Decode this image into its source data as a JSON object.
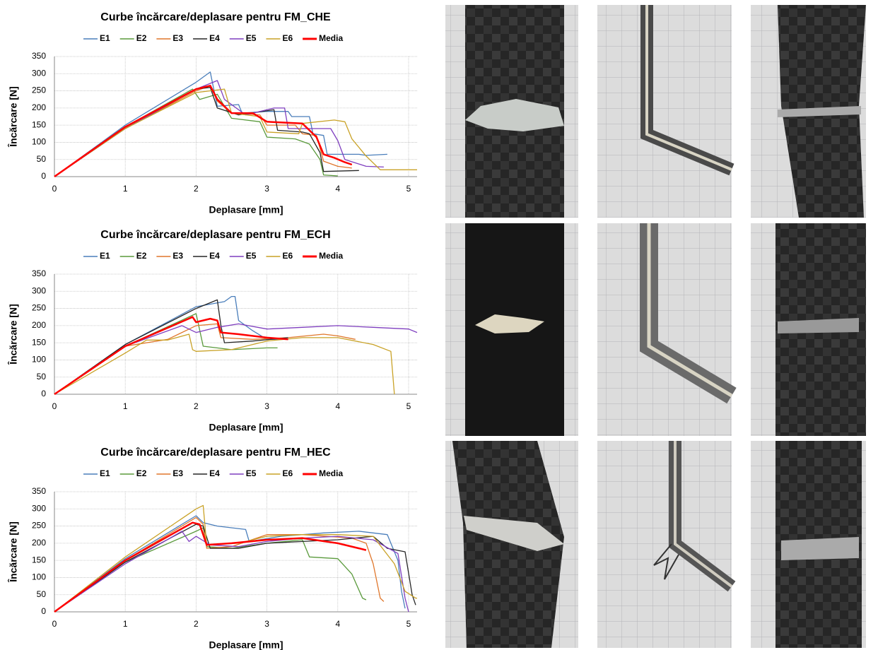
{
  "chart_data": [
    {
      "type": "line",
      "title": "Curbe încărcare/deplasare pentru FM_CHE",
      "x_label": "Deplasare  [mm]",
      "y_label": "Încărcare [N]",
      "xlim": [
        0,
        5.12
      ],
      "xticks": [
        0,
        1,
        2,
        3,
        4,
        5
      ],
      "ylim": [
        0,
        350
      ],
      "yticks": [
        0,
        50,
        100,
        150,
        200,
        250,
        300,
        350
      ],
      "grid": true,
      "legend": "top",
      "series": [
        {
          "name": "E1",
          "color": "#4a7ebb",
          "x": [
            0,
            1,
            2,
            2.2,
            2.3,
            2.6,
            2.65,
            3.0,
            3.3,
            3.35,
            3.6,
            3.65,
            3.8,
            3.85,
            4.3,
            4.4,
            4.7
          ],
          "values": [
            0,
            150,
            275,
            305,
            205,
            210,
            185,
            190,
            190,
            175,
            175,
            125,
            120,
            65,
            65,
            62,
            65
          ]
        },
        {
          "name": "E2",
          "color": "#5a9a3c",
          "x": [
            0,
            1,
            1.95,
            2.05,
            2.3,
            2.5,
            2.9,
            3.0,
            3.4,
            3.6,
            3.75,
            3.8,
            4.0
          ],
          "values": [
            0,
            145,
            255,
            225,
            240,
            170,
            160,
            115,
            110,
            95,
            50,
            5,
            2
          ]
        },
        {
          "name": "E3",
          "color": "#e0772c",
          "x": [
            0,
            1,
            2,
            2.2,
            2.3,
            2.5,
            2.9,
            3.0,
            3.4,
            3.5,
            3.7,
            3.8,
            4.0,
            4.2
          ],
          "values": [
            0,
            140,
            250,
            265,
            220,
            185,
            180,
            150,
            150,
            125,
            120,
            45,
            30,
            25
          ]
        },
        {
          "name": "E4",
          "color": "#262626",
          "x": [
            0,
            1,
            2,
            2.2,
            2.3,
            2.6,
            3.1,
            3.15,
            3.5,
            3.6,
            3.75,
            3.8,
            4.3
          ],
          "values": [
            0,
            140,
            255,
            260,
            200,
            180,
            195,
            135,
            130,
            125,
            70,
            15,
            18
          ]
        },
        {
          "name": "E5",
          "color": "#7f3fbf",
          "x": [
            0,
            1,
            2,
            2.3,
            2.4,
            2.7,
            2.9,
            3.1,
            3.25,
            3.3,
            3.9,
            4.0,
            4.1,
            4.4,
            4.65
          ],
          "values": [
            0,
            140,
            255,
            280,
            225,
            180,
            190,
            200,
            200,
            140,
            140,
            105,
            50,
            30,
            28
          ]
        },
        {
          "name": "E6",
          "color": "#c9a227",
          "x": [
            0,
            1,
            2,
            2.4,
            2.5,
            2.9,
            3.0,
            3.45,
            3.5,
            3.95,
            4.1,
            4.2,
            4.4,
            4.6,
            5.12
          ],
          "values": [
            0,
            140,
            245,
            255,
            185,
            175,
            130,
            125,
            155,
            165,
            160,
            110,
            60,
            20,
            20
          ]
        },
        {
          "name": "Media",
          "color": "#ff0000",
          "x": [
            0,
            1,
            2,
            2.2,
            2.3,
            2.5,
            2.8,
            3.0,
            3.5,
            3.7,
            3.8,
            3.95,
            4.1,
            4.2
          ],
          "values": [
            0,
            145,
            255,
            265,
            225,
            185,
            185,
            160,
            155,
            115,
            65,
            55,
            42,
            35
          ]
        }
      ]
    },
    {
      "type": "line",
      "title": "Curbe încărcare/deplasare pentru FM_ECH",
      "x_label": "Deplasare  [mm]",
      "y_label": "Încărcare [N]",
      "xlim": [
        0,
        5.12
      ],
      "xticks": [
        0,
        1,
        2,
        3,
        4,
        5
      ],
      "ylim": [
        0,
        350
      ],
      "yticks": [
        0,
        50,
        100,
        150,
        200,
        250,
        300,
        350
      ],
      "grid": true,
      "legend": "top",
      "series": [
        {
          "name": "E1",
          "color": "#4a7ebb",
          "x": [
            0,
            1,
            2,
            2.4,
            2.5,
            2.55,
            2.6,
            2.8,
            3.0,
            3.2
          ],
          "values": [
            0,
            145,
            255,
            270,
            285,
            285,
            215,
            185,
            160,
            160
          ]
        },
        {
          "name": "E2",
          "color": "#5a9a3c",
          "x": [
            0,
            1,
            2,
            2.1,
            2.5,
            3.0,
            3.15
          ],
          "values": [
            0,
            140,
            235,
            140,
            130,
            135,
            135
          ]
        },
        {
          "name": "E3",
          "color": "#e0772c",
          "x": [
            0,
            1,
            1.6,
            2.0,
            2.3,
            2.35,
            2.8,
            3.3,
            3.8,
            4.0,
            4.25
          ],
          "values": [
            0,
            140,
            160,
            200,
            205,
            165,
            160,
            165,
            175,
            170,
            160
          ]
        },
        {
          "name": "E4",
          "color": "#262626",
          "x": [
            0,
            1,
            2,
            2.3,
            2.35,
            2.4,
            2.8,
            3.3
          ],
          "values": [
            0,
            145,
            250,
            275,
            200,
            150,
            155,
            165
          ]
        },
        {
          "name": "E5",
          "color": "#7f3fbf",
          "x": [
            0,
            1,
            1.8,
            2.0,
            2.3,
            2.6,
            3.0,
            3.5,
            4.0,
            4.5,
            5.0,
            5.12
          ],
          "values": [
            0,
            140,
            200,
            180,
            195,
            205,
            190,
            195,
            200,
            195,
            190,
            180
          ]
        },
        {
          "name": "E6",
          "color": "#c9a227",
          "x": [
            0,
            1,
            1.3,
            1.6,
            1.9,
            1.95,
            2.0,
            2.5,
            3.0,
            3.5,
            4.0,
            4.5,
            4.75,
            4.8
          ],
          "values": [
            0,
            120,
            158,
            158,
            175,
            130,
            125,
            130,
            155,
            165,
            165,
            145,
            125,
            0
          ]
        },
        {
          "name": "Media",
          "color": "#ff0000",
          "x": [
            0,
            1,
            1.95,
            2.0,
            2.2,
            2.3,
            2.35,
            2.6,
            3.0,
            3.3
          ],
          "values": [
            0,
            140,
            225,
            210,
            220,
            215,
            180,
            175,
            165,
            160
          ]
        }
      ]
    },
    {
      "type": "line",
      "title": "Curbe încărcare/deplasare pentru FM_HEC",
      "x_label": "Deplasare  [mm]",
      "y_label": "Încărcare [N]",
      "xlim": [
        0,
        5.12
      ],
      "xticks": [
        0,
        1,
        2,
        3,
        4,
        5
      ],
      "ylim": [
        0,
        350
      ],
      "yticks": [
        0,
        50,
        100,
        150,
        200,
        250,
        300,
        350
      ],
      "grid": true,
      "legend": "top",
      "series": [
        {
          "name": "E1",
          "color": "#4a7ebb",
          "x": [
            0,
            1,
            2,
            2.1,
            2.3,
            2.7,
            2.75,
            3.2,
            3.8,
            4.3,
            4.7,
            4.85,
            4.9,
            4.95
          ],
          "values": [
            0,
            155,
            280,
            260,
            250,
            240,
            205,
            220,
            230,
            235,
            225,
            150,
            60,
            10
          ]
        },
        {
          "name": "E2",
          "color": "#5a9a3c",
          "x": [
            0,
            1,
            2,
            2.1,
            2.15,
            2.5,
            3.0,
            3.5,
            3.6,
            4.0,
            4.2,
            4.35,
            4.4
          ],
          "values": [
            0,
            145,
            235,
            245,
            190,
            185,
            200,
            210,
            160,
            155,
            110,
            40,
            35
          ]
        },
        {
          "name": "E3",
          "color": "#e0772c",
          "x": [
            0,
            1,
            2,
            2.1,
            2.15,
            2.5,
            3.0,
            3.5,
            4.2,
            4.4,
            4.5,
            4.6,
            4.65
          ],
          "values": [
            0,
            150,
            275,
            255,
            185,
            190,
            225,
            225,
            215,
            200,
            140,
            40,
            30
          ]
        },
        {
          "name": "E4",
          "color": "#262626",
          "x": [
            0,
            1,
            2,
            2.1,
            2.2,
            2.6,
            3.0,
            3.5,
            4.0,
            4.5,
            4.7,
            4.95,
            5.05,
            5.1
          ],
          "values": [
            0,
            145,
            255,
            250,
            185,
            185,
            200,
            205,
            210,
            220,
            185,
            175,
            50,
            20
          ]
        },
        {
          "name": "E5",
          "color": "#7f3fbf",
          "x": [
            0,
            1,
            1.8,
            1.9,
            2.0,
            2.2,
            2.6,
            3.0,
            3.5,
            4.0,
            4.5,
            4.85,
            4.95,
            5.0
          ],
          "values": [
            0,
            140,
            235,
            205,
            220,
            195,
            190,
            205,
            215,
            220,
            210,
            170,
            40,
            0
          ]
        },
        {
          "name": "E6",
          "color": "#c9a227",
          "x": [
            0,
            1,
            2,
            2.1,
            2.15,
            2.6,
            3.0,
            3.5,
            4.0,
            4.5,
            4.8,
            4.95,
            5.1,
            5.12
          ],
          "values": [
            0,
            160,
            300,
            310,
            195,
            200,
            220,
            225,
            225,
            220,
            140,
            60,
            40,
            40
          ]
        },
        {
          "name": "Media",
          "color": "#ff0000",
          "x": [
            0,
            1,
            1.95,
            2.05,
            2.15,
            2.5,
            3.0,
            3.5,
            4.0,
            4.3,
            4.4
          ],
          "values": [
            0,
            150,
            260,
            255,
            195,
            200,
            210,
            215,
            200,
            185,
            180
          ]
        }
      ]
    }
  ]
}
